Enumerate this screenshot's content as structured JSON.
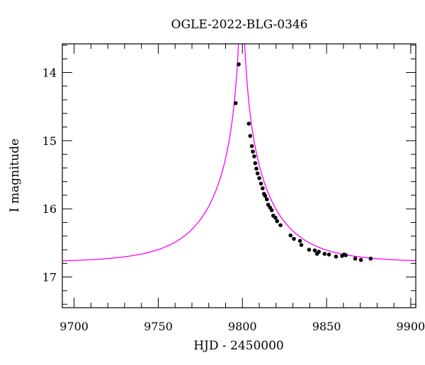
{
  "chart_data": {
    "type": "scatter",
    "title": "OGLE-2022-BLG-0346",
    "xlabel": "HJD - 2450000",
    "ylabel": "I magnitude",
    "xlim": [
      9693,
      9903
    ],
    "ylim": [
      17.45,
      13.58
    ],
    "y_inverted": true,
    "x_ticks": [
      9700,
      9750,
      9800,
      9850,
      9900
    ],
    "y_ticks": [
      14,
      15,
      16,
      17
    ],
    "x_minor_step": 10,
    "y_minor_step": 0.2,
    "grid": false,
    "colors": {
      "model": "#ff00ff",
      "points": "#000000"
    },
    "series": [
      {
        "kind": "points",
        "x": [
          9796.0,
          9797.8,
          9803.8,
          9804.6,
          9805.6,
          9806.2,
          9807.0,
          9807.6,
          9808.3,
          9809.0,
          9810.0,
          9811.0,
          9812.0,
          9812.8,
          9813.5,
          9814.5,
          9815.3,
          9816.4,
          9817.4,
          9818.3,
          9819.6,
          9820.6,
          9822.6,
          9828.6,
          9830.6,
          9834.2,
          9835.0,
          9839.6,
          9843.0,
          9844.3,
          9845.4,
          9848.8,
          9851.4,
          9855.6,
          9859.2,
          9860.4,
          9861.4,
          9867.0,
          9870.4,
          9876.2
        ],
        "y": [
          14.45,
          13.88,
          14.75,
          14.93,
          15.08,
          15.16,
          15.23,
          15.33,
          15.41,
          15.48,
          15.55,
          15.63,
          15.7,
          15.78,
          15.81,
          15.86,
          15.94,
          15.98,
          16.02,
          16.1,
          16.13,
          16.18,
          16.24,
          16.39,
          16.44,
          16.47,
          16.53,
          16.6,
          16.61,
          16.66,
          16.63,
          16.66,
          16.67,
          16.7,
          16.69,
          16.67,
          16.68,
          16.73,
          16.75,
          16.73
        ]
      },
      {
        "kind": "model",
        "model": {
          "t0": 9799.5,
          "tE": 38.0,
          "u0": 0.02,
          "baseline": 16.785
        }
      }
    ]
  }
}
